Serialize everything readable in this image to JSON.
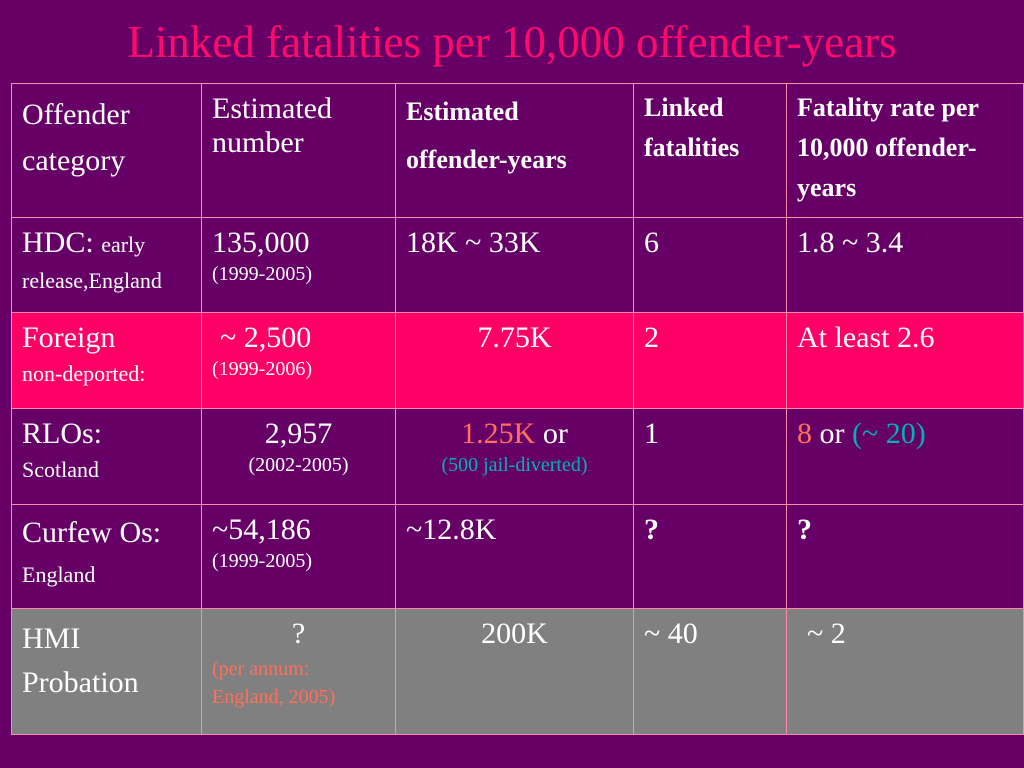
{
  "title": "Linked fatalities per 10,000 offender-years",
  "headers": {
    "col1_line1": "Offender",
    "col1_line2": "category",
    "col2": "Estimated number",
    "col3_line1": "Estimated",
    "col3_line2": "offender-years",
    "col4": "Linked fatalities",
    "col5": "Fatality rate per 10,000 offender-years"
  },
  "rows": [
    {
      "category_main": "HDC:",
      "category_sub": "early release,England",
      "number": "135,000",
      "number_note": "(1999-2005)",
      "offender_years": "18K ~ 33K",
      "fatalities": "6",
      "rate": "1.8 ~ 3.4"
    },
    {
      "category_main": "Foreign",
      "category_sub": "non-deported:",
      "number": "~ 2,500",
      "number_note": "(1999-2006)",
      "offender_years": "7.75K",
      "fatalities": "2",
      "rate": "At least 2.6"
    },
    {
      "category_main": "RLOs:",
      "category_sub": "Scotland",
      "number": "2,957",
      "number_note": "(2002-2005)",
      "offender_years": "1.25K",
      "offender_years_or": "or",
      "offender_years_note": "(500 jail-diverted)",
      "fatalities": "1",
      "rate": "8",
      "rate_or": "or",
      "rate_alt": "(~ 20)"
    },
    {
      "category_main": "Curfew Os:",
      "category_sub": "England",
      "number": "~54,186",
      "number_note": "(1999-2005)",
      "offender_years": "~12.8K",
      "fatalities": "?",
      "rate": "?"
    },
    {
      "category_main": "HMI Probation",
      "number": "?",
      "number_note": "(per annum: England, 2005)",
      "offender_years": "200K",
      "fatalities": "~ 40",
      "rate": "~ 2"
    }
  ],
  "colors": {
    "background": "#660066",
    "title": "#ff0a6c",
    "header_text": "#ff9ab8",
    "highlight_row": "#ff0066",
    "gray_row": "#808080",
    "salmon_text": "#ff6f5a",
    "teal_text": "#00b3b3",
    "yellow_text": "#ffff00"
  }
}
